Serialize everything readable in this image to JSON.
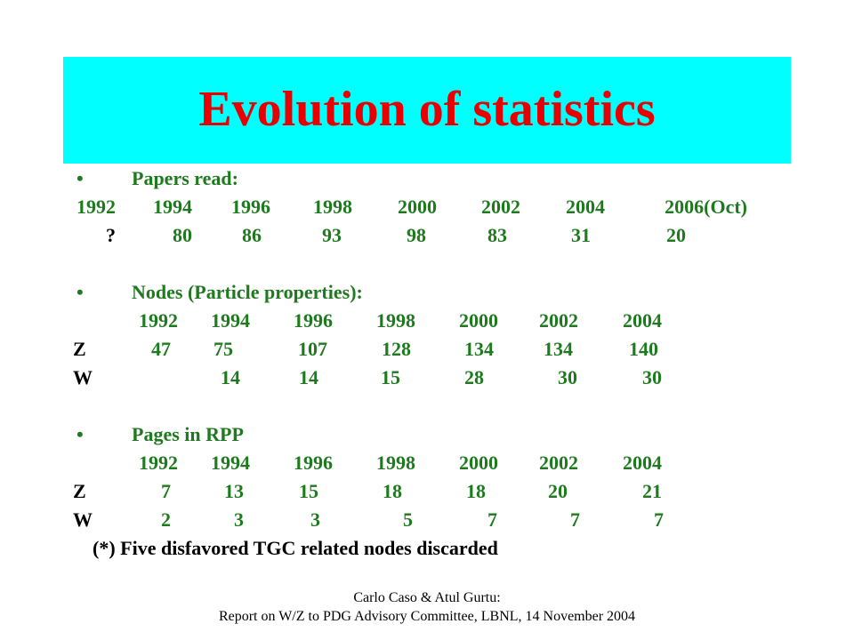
{
  "title": "Evolution of statistics",
  "bullet": "•",
  "papers": {
    "label": "Papers read:",
    "years": [
      "1992",
      "1994",
      "1996",
      "1998",
      "2000",
      "2002",
      "2004",
      "2006(Oct)"
    ],
    "values": [
      "?",
      "80",
      "86",
      "93",
      "98",
      "83",
      "31",
      "20"
    ]
  },
  "nodes": {
    "label": "Nodes (Particle properties):",
    "years": [
      "1992",
      "1994",
      "1996",
      "1998",
      "2000",
      "2002",
      "2004"
    ],
    "rows": [
      {
        "name": "Z",
        "values": [
          "47",
          "75",
          "107",
          "128",
          "134",
          "134",
          "140"
        ]
      },
      {
        "name": "W",
        "values": [
          "",
          "14",
          "14",
          "15",
          "28",
          "30",
          "30"
        ]
      }
    ]
  },
  "pages": {
    "label": "Pages in RPP",
    "years": [
      "1992",
      "1994",
      "1996",
      "1998",
      "2000",
      "2002",
      "2004"
    ],
    "rows": [
      {
        "name": "Z",
        "values": [
          "7",
          "13",
          "15",
          "18",
          "18",
          "20",
          "21"
        ]
      },
      {
        "name": "W",
        "values": [
          "2",
          "3",
          "3",
          "5",
          "7",
          "7",
          "7"
        ]
      }
    ]
  },
  "note": "(*) Five disfavored TGC related nodes discarded",
  "footer": {
    "line1": "Carlo Caso & Atul Gurtu:",
    "line2": "Report on W/Z to PDG Advisory Committee, LBNL, 14 November 2004"
  },
  "colors": {
    "title_bg": "#00ffff",
    "title_text": "#e80000",
    "body_text": "#1f7a1f"
  }
}
